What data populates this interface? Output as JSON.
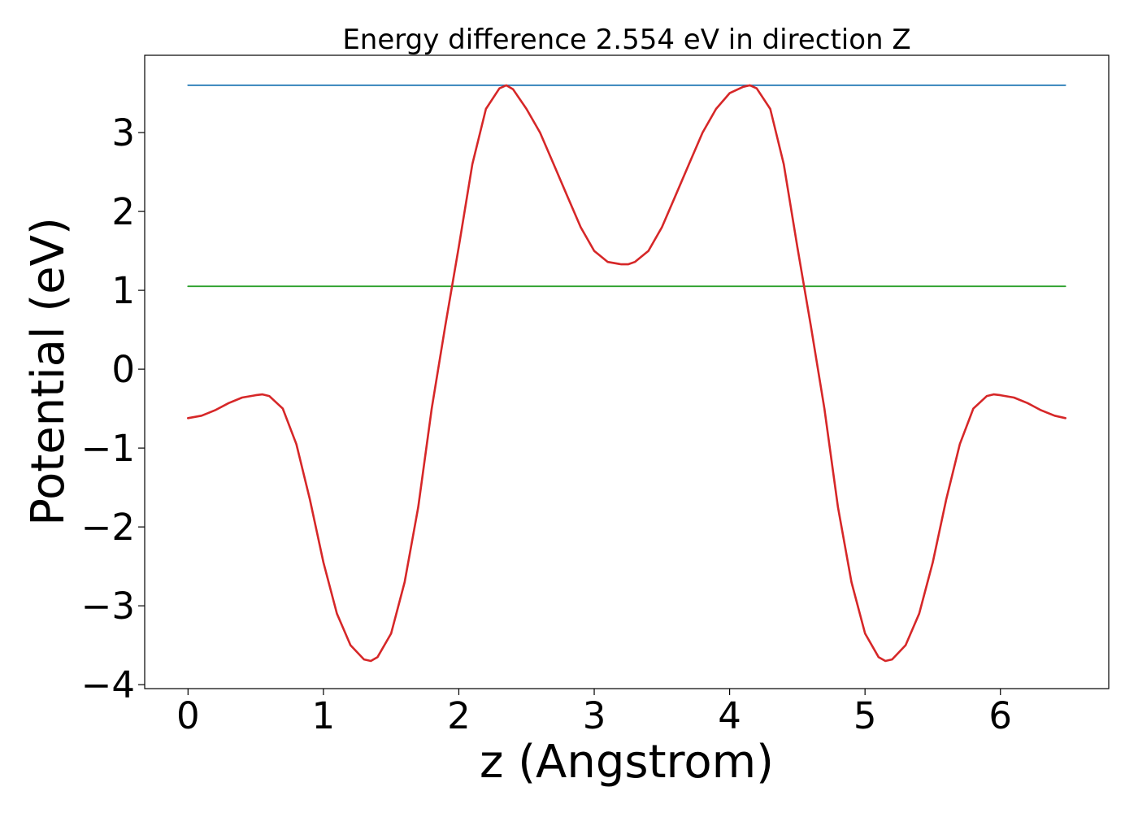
{
  "chart_data": {
    "type": "line",
    "title": "Energy difference 2.554 eV in direction Z",
    "xlabel": "z (Angstrom)",
    "ylabel": "Potential (eV)",
    "xlim": [
      -0.32,
      6.8
    ],
    "ylim": [
      -4.05,
      3.98
    ],
    "grid": false,
    "x_ticks": [
      {
        "value": 0,
        "label": "0"
      },
      {
        "value": 1,
        "label": "1"
      },
      {
        "value": 2,
        "label": "2"
      },
      {
        "value": 3,
        "label": "3"
      },
      {
        "value": 4,
        "label": "4"
      },
      {
        "value": 5,
        "label": "5"
      },
      {
        "value": 6,
        "label": "6"
      }
    ],
    "y_ticks": [
      {
        "value": -4,
        "label": "−4"
      },
      {
        "value": -3,
        "label": "−3"
      },
      {
        "value": -2,
        "label": "−2"
      },
      {
        "value": -1,
        "label": "−1"
      },
      {
        "value": 0,
        "label": "0"
      },
      {
        "value": 1,
        "label": "1"
      },
      {
        "value": 2,
        "label": "2"
      },
      {
        "value": 3,
        "label": "3"
      }
    ],
    "series": [
      {
        "color": "#d62728",
        "x": [
          0,
          0.1,
          0.2,
          0.3,
          0.4,
          0.5,
          0.55,
          0.6,
          0.7,
          0.8,
          0.9,
          1.0,
          1.1,
          1.2,
          1.3,
          1.35,
          1.4,
          1.5,
          1.6,
          1.7,
          1.8,
          1.9,
          2.0,
          2.1,
          2.2,
          2.3,
          2.35,
          2.4,
          2.5,
          2.6,
          2.7,
          2.8,
          2.9,
          3.0,
          3.1,
          3.2,
          3.25,
          3.3,
          3.4,
          3.5,
          3.6,
          3.7,
          3.8,
          3.9,
          4.0,
          4.1,
          4.15,
          4.2,
          4.3,
          4.4,
          4.5,
          4.6,
          4.7,
          4.8,
          4.9,
          5.0,
          5.1,
          5.15,
          5.2,
          5.3,
          5.4,
          5.5,
          5.6,
          5.7,
          5.8,
          5.9,
          5.95,
          6.0,
          6.1,
          6.2,
          6.3,
          6.4,
          6.48
        ],
        "y": [
          -0.62,
          -0.59,
          -0.52,
          -0.43,
          -0.36,
          -0.33,
          -0.32,
          -0.34,
          -0.5,
          -0.95,
          -1.65,
          -2.45,
          -3.1,
          -3.5,
          -3.68,
          -3.7,
          -3.65,
          -3.35,
          -2.7,
          -1.75,
          -0.5,
          0.55,
          1.55,
          2.6,
          3.3,
          3.56,
          3.6,
          3.55,
          3.3,
          3.0,
          2.6,
          2.2,
          1.8,
          1.5,
          1.36,
          1.33,
          1.33,
          1.36,
          1.5,
          1.8,
          2.2,
          2.6,
          3.0,
          3.3,
          3.5,
          3.58,
          3.6,
          3.56,
          3.3,
          2.6,
          1.55,
          0.55,
          -0.5,
          -1.75,
          -2.7,
          -3.35,
          -3.65,
          -3.7,
          -3.68,
          -3.5,
          -3.1,
          -2.45,
          -1.65,
          -0.95,
          -0.5,
          -0.34,
          -0.32,
          -0.33,
          -0.36,
          -0.43,
          -0.52,
          -0.59,
          -0.62
        ]
      },
      {
        "color": "#1f77b4",
        "x": [
          0,
          6.48
        ],
        "y": [
          3.6,
          3.6
        ]
      },
      {
        "color": "#2ca02c",
        "x": [
          0,
          6.48
        ],
        "y": [
          1.05,
          1.05
        ]
      }
    ]
  }
}
